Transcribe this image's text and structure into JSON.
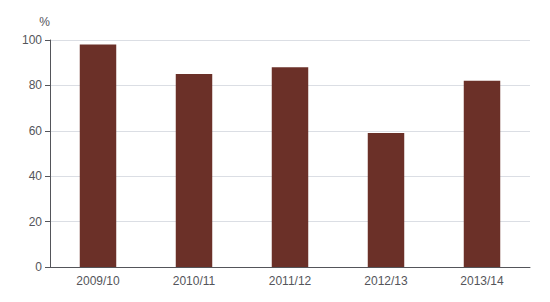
{
  "chart_data": {
    "type": "bar",
    "categories": [
      "2009/10",
      "2010/11",
      "2011/12",
      "2012/13",
      "2013/14"
    ],
    "values": [
      98,
      85,
      88,
      59,
      82
    ],
    "color": "#6b3028",
    "ylabel": "%",
    "ylim": [
      0,
      100
    ],
    "yticks": [
      0,
      20,
      40,
      60,
      80,
      100
    ],
    "grid": true
  }
}
